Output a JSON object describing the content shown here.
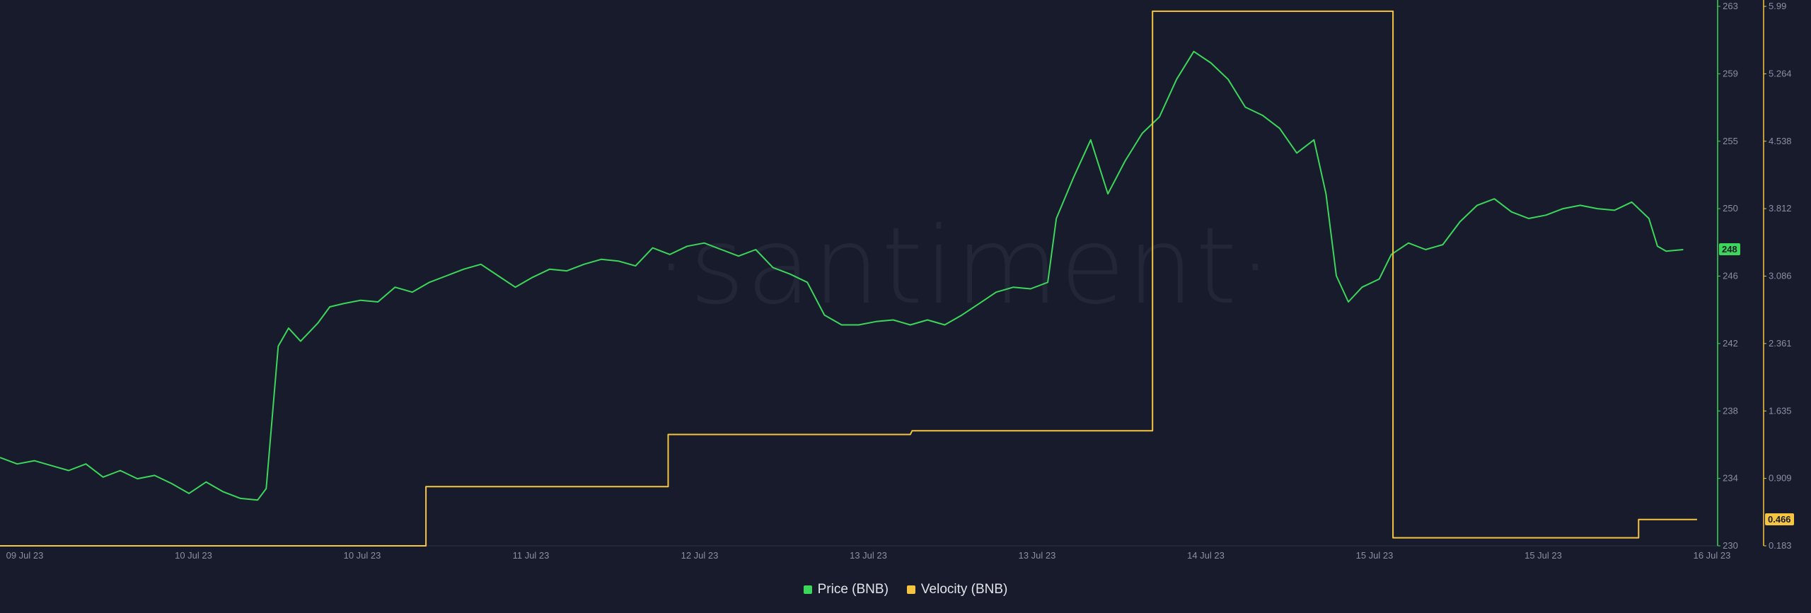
{
  "chart_data": {
    "type": "line",
    "watermark": "·santiment·",
    "x_tick_labels": [
      "09 Jul 23",
      "10 Jul 23",
      "10 Jul 23",
      "11 Jul 23",
      "12 Jul 23",
      "13 Jul 23",
      "13 Jul 23",
      "14 Jul 23",
      "15 Jul 23",
      "15 Jul 23",
      "16 Jul 23"
    ],
    "y_left_label_axis": {
      "name": "Price (BNB)",
      "ticks": [
        "263",
        "259",
        "255",
        "250",
        "246",
        "242",
        "238",
        "234",
        "230"
      ],
      "ylim": [
        230,
        263
      ],
      "current_value_label": "248"
    },
    "y_right_label_axis": {
      "name": "Velocity (BNB)",
      "ticks": [
        "5.99",
        "5.264",
        "4.538",
        "3.812",
        "3.086",
        "2.361",
        "1.635",
        "0.909",
        "0.183"
      ],
      "ylim": [
        0.183,
        5.99
      ],
      "current_value_label": "0.466"
    },
    "x_range": [
      0,
      100
    ],
    "series": [
      {
        "name": "Price (BNB)",
        "color": "#3bd65a",
        "axis": "left",
        "points": [
          [
            0,
            235.4
          ],
          [
            1,
            235.0
          ],
          [
            2,
            235.2
          ],
          [
            3,
            234.9
          ],
          [
            4,
            234.6
          ],
          [
            5,
            235.0
          ],
          [
            6,
            234.2
          ],
          [
            7,
            234.6
          ],
          [
            8,
            234.1
          ],
          [
            9,
            234.3
          ],
          [
            10,
            233.8
          ],
          [
            11,
            233.2
          ],
          [
            12,
            233.9
          ],
          [
            13,
            233.3
          ],
          [
            14,
            232.9
          ],
          [
            15,
            232.8
          ],
          [
            15.5,
            233.5
          ],
          [
            16.2,
            242.2
          ],
          [
            16.8,
            243.3
          ],
          [
            17.5,
            242.5
          ],
          [
            18.5,
            243.6
          ],
          [
            19.2,
            244.6
          ],
          [
            20,
            244.8
          ],
          [
            21,
            245.0
          ],
          [
            22,
            244.9
          ],
          [
            23,
            245.8
          ],
          [
            24,
            245.5
          ],
          [
            25,
            246.1
          ],
          [
            26,
            246.5
          ],
          [
            27,
            246.9
          ],
          [
            28,
            247.2
          ],
          [
            29,
            246.5
          ],
          [
            30,
            245.8
          ],
          [
            31,
            246.4
          ],
          [
            32,
            246.9
          ],
          [
            33,
            246.8
          ],
          [
            34,
            247.2
          ],
          [
            35,
            247.5
          ],
          [
            36,
            247.4
          ],
          [
            37,
            247.1
          ],
          [
            38,
            248.2
          ],
          [
            39,
            247.8
          ],
          [
            40,
            248.3
          ],
          [
            41,
            248.5
          ],
          [
            42,
            248.1
          ],
          [
            43,
            247.7
          ],
          [
            44,
            248.1
          ],
          [
            45,
            247.0
          ],
          [
            46,
            246.6
          ],
          [
            47,
            246.1
          ],
          [
            48,
            244.1
          ],
          [
            49,
            243.5
          ],
          [
            50,
            243.5
          ],
          [
            51,
            243.7
          ],
          [
            52,
            243.8
          ],
          [
            53,
            243.5
          ],
          [
            54,
            243.8
          ],
          [
            55,
            243.5
          ],
          [
            56,
            244.1
          ],
          [
            57,
            244.8
          ],
          [
            58,
            245.5
          ],
          [
            59,
            245.8
          ],
          [
            60,
            245.7
          ],
          [
            61,
            246.1
          ],
          [
            61.5,
            250.0
          ],
          [
            62.5,
            252.5
          ],
          [
            63.5,
            254.8
          ],
          [
            64.5,
            251.5
          ],
          [
            65.5,
            253.5
          ],
          [
            66.5,
            255.2
          ],
          [
            67.5,
            256.2
          ],
          [
            68.5,
            258.5
          ],
          [
            69.5,
            260.2
          ],
          [
            70.5,
            259.5
          ],
          [
            71.5,
            258.5
          ],
          [
            72.5,
            256.8
          ],
          [
            73.5,
            256.3
          ],
          [
            74.5,
            255.5
          ],
          [
            75.5,
            254.0
          ],
          [
            76.5,
            254.8
          ],
          [
            77.2,
            251.5
          ],
          [
            77.8,
            246.5
          ],
          [
            78.5,
            244.9
          ],
          [
            79.3,
            245.8
          ],
          [
            80.3,
            246.3
          ],
          [
            81,
            247.8
          ],
          [
            82,
            248.5
          ],
          [
            83,
            248.1
          ],
          [
            84,
            248.4
          ],
          [
            85,
            249.8
          ],
          [
            86,
            250.8
          ],
          [
            87,
            251.2
          ],
          [
            88,
            250.4
          ],
          [
            89,
            250.0
          ],
          [
            90,
            250.2
          ],
          [
            91,
            250.6
          ],
          [
            92,
            250.8
          ],
          [
            93,
            250.6
          ],
          [
            94,
            250.5
          ],
          [
            95,
            251.0
          ],
          [
            96,
            250.0
          ],
          [
            96.5,
            248.3
          ],
          [
            97,
            248.0
          ],
          [
            98,
            248.1
          ]
        ]
      },
      {
        "name": "Velocity (BNB)",
        "color": "#f5c542",
        "axis": "right",
        "points": [
          [
            0,
            0.183
          ],
          [
            24.8,
            0.183
          ],
          [
            24.8,
            0.82
          ],
          [
            38.9,
            0.82
          ],
          [
            38.9,
            1.38
          ],
          [
            53,
            1.38
          ],
          [
            53.1,
            1.42
          ],
          [
            67.1,
            1.42
          ],
          [
            67.1,
            5.93
          ],
          [
            81.1,
            5.93
          ],
          [
            81.1,
            0.27
          ],
          [
            95.4,
            0.27
          ],
          [
            95.4,
            0.466
          ],
          [
            98.8,
            0.466
          ]
        ]
      }
    ],
    "legend": [
      {
        "label": "Price (BNB)",
        "color": "#3bd65a"
      },
      {
        "label": "Velocity (BNB)",
        "color": "#f5c542"
      }
    ],
    "legend_position": "bottom-center",
    "grid": false
  }
}
